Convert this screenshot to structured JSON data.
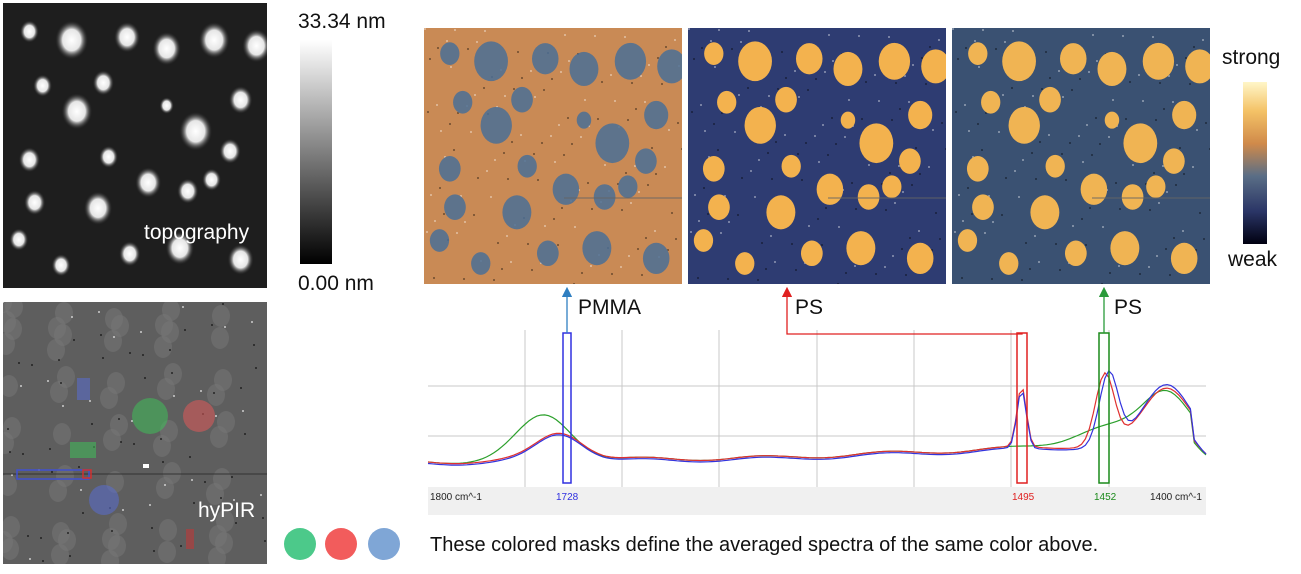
{
  "topography": {
    "label": "topography",
    "scale_max": "33.34 nm",
    "scale_min": "0.00 nm"
  },
  "hypir": {
    "label": "hyPIR"
  },
  "intensity_scale": {
    "strong": "strong",
    "weak": "weak"
  },
  "maps": [
    {
      "label": "PMMA",
      "arrow_color": "#2f7fc1"
    },
    {
      "label": "PS",
      "arrow_color": "#e02020"
    },
    {
      "label": "PS",
      "arrow_color": "#2a9a3a"
    }
  ],
  "spectrum": {
    "x_axis_left": "1800 cm^-1",
    "x_axis_right": "1400 cm^-1",
    "markers": [
      {
        "value": "1728",
        "color": "#3030e0"
      },
      {
        "value": "1495",
        "color": "#e02020"
      },
      {
        "value": "1452",
        "color": "#1a8a1a"
      }
    ]
  },
  "masks": {
    "colors": [
      "#4cc98a",
      "#f25c5c",
      "#7fa6d6"
    ],
    "caption": "These colored masks define the averaged spectra of the same color above."
  }
}
